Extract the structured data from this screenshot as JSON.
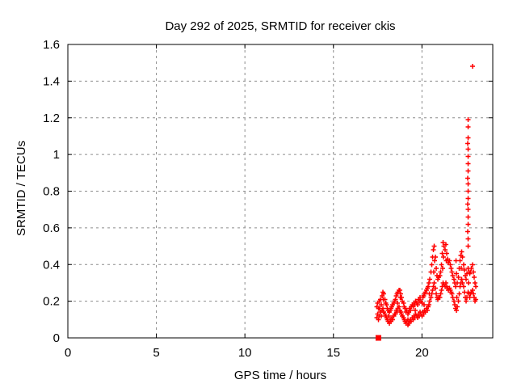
{
  "chart_data": {
    "type": "scatter",
    "title": "Day 292 of 2025, SRMTID for receiver ckis",
    "xlabel": "GPS time / hours",
    "ylabel": "SRMTID / TECUs",
    "xlim": [
      0,
      24
    ],
    "ylim": [
      0,
      1.6
    ],
    "xticks": [
      0,
      5,
      10,
      15,
      20
    ],
    "yticks": [
      0,
      0.2,
      0.4,
      0.6,
      0.8,
      1,
      1.2,
      1.4,
      1.6
    ],
    "grid": true,
    "grid_style": "dashed",
    "legend": "none",
    "colors": {
      "marker": "#ff0000",
      "grid": "#8c8c8c",
      "axis": "#000000",
      "background": "#ffffff",
      "text": "#000000"
    },
    "marker": "plus",
    "zero_marker": {
      "shape": "filled-square",
      "x": 17.54,
      "y": 0
    },
    "outlier": {
      "x": 22.87,
      "y": 1.48
    },
    "series": [
      {
        "name": "SRMTID",
        "points": [
          [
            17.45,
            0.11
          ],
          [
            17.45,
            0.17
          ],
          [
            17.5,
            0.13
          ],
          [
            17.5,
            0.19
          ],
          [
            17.55,
            0.1
          ],
          [
            17.55,
            0.16
          ],
          [
            17.6,
            0.12
          ],
          [
            17.6,
            0.2
          ],
          [
            17.62,
            0.16
          ],
          [
            17.65,
            0.14
          ],
          [
            17.65,
            0.21
          ],
          [
            17.7,
            0.12
          ],
          [
            17.7,
            0.18
          ],
          [
            17.75,
            0.15
          ],
          [
            17.75,
            0.23
          ],
          [
            17.8,
            0.16
          ],
          [
            17.8,
            0.25
          ],
          [
            17.82,
            0.21
          ],
          [
            17.85,
            0.14
          ],
          [
            17.85,
            0.24
          ],
          [
            17.9,
            0.13
          ],
          [
            17.9,
            0.21
          ],
          [
            17.95,
            0.12
          ],
          [
            17.95,
            0.19
          ],
          [
            18.0,
            0.11
          ],
          [
            18.0,
            0.18
          ],
          [
            18.05,
            0.1
          ],
          [
            18.05,
            0.16
          ],
          [
            18.1,
            0.09
          ],
          [
            18.1,
            0.15
          ],
          [
            18.12,
            0.12
          ],
          [
            18.15,
            0.08
          ],
          [
            18.15,
            0.14
          ],
          [
            18.2,
            0.1
          ],
          [
            18.2,
            0.15
          ],
          [
            18.25,
            0.09
          ],
          [
            18.25,
            0.16
          ],
          [
            18.3,
            0.11
          ],
          [
            18.3,
            0.17
          ],
          [
            18.35,
            0.1
          ],
          [
            18.35,
            0.18
          ],
          [
            18.4,
            0.12
          ],
          [
            18.4,
            0.19
          ],
          [
            18.45,
            0.13
          ],
          [
            18.45,
            0.2
          ],
          [
            18.5,
            0.13
          ],
          [
            18.5,
            0.21
          ],
          [
            18.55,
            0.15
          ],
          [
            18.55,
            0.23
          ],
          [
            18.6,
            0.14
          ],
          [
            18.6,
            0.24
          ],
          [
            18.62,
            0.19
          ],
          [
            18.65,
            0.16
          ],
          [
            18.65,
            0.25
          ],
          [
            18.7,
            0.17
          ],
          [
            18.7,
            0.26
          ],
          [
            18.75,
            0.15
          ],
          [
            18.75,
            0.26
          ],
          [
            18.77,
            0.22
          ],
          [
            18.8,
            0.14
          ],
          [
            18.8,
            0.24
          ],
          [
            18.85,
            0.13
          ],
          [
            18.85,
            0.22
          ],
          [
            18.9,
            0.12
          ],
          [
            18.9,
            0.2
          ],
          [
            18.95,
            0.11
          ],
          [
            18.95,
            0.19
          ],
          [
            19.0,
            0.1
          ],
          [
            19.0,
            0.17
          ],
          [
            19.05,
            0.09
          ],
          [
            19.05,
            0.16
          ],
          [
            19.1,
            0.08
          ],
          [
            19.1,
            0.14
          ],
          [
            19.15,
            0.09
          ],
          [
            19.15,
            0.15
          ],
          [
            19.2,
            0.07
          ],
          [
            19.2,
            0.13
          ],
          [
            19.22,
            0.1
          ],
          [
            19.25,
            0.08
          ],
          [
            19.25,
            0.14
          ],
          [
            19.3,
            0.09
          ],
          [
            19.3,
            0.16
          ],
          [
            19.35,
            0.1
          ],
          [
            19.35,
            0.15
          ],
          [
            19.4,
            0.09
          ],
          [
            19.4,
            0.17
          ],
          [
            19.45,
            0.11
          ],
          [
            19.45,
            0.18
          ],
          [
            19.5,
            0.1
          ],
          [
            19.5,
            0.17
          ],
          [
            19.55,
            0.12
          ],
          [
            19.55,
            0.19
          ],
          [
            19.6,
            0.11
          ],
          [
            19.6,
            0.18
          ],
          [
            19.62,
            0.15
          ],
          [
            19.65,
            0.13
          ],
          [
            19.65,
            0.2
          ],
          [
            19.7,
            0.12
          ],
          [
            19.7,
            0.19
          ],
          [
            19.75,
            0.11
          ],
          [
            19.75,
            0.18
          ],
          [
            19.8,
            0.13
          ],
          [
            19.8,
            0.21
          ],
          [
            19.85,
            0.12
          ],
          [
            19.85,
            0.2
          ],
          [
            19.9,
            0.14
          ],
          [
            19.9,
            0.22
          ],
          [
            19.95,
            0.13
          ],
          [
            19.95,
            0.2
          ],
          [
            20.0,
            0.12
          ],
          [
            20.0,
            0.19
          ],
          [
            20.05,
            0.14
          ],
          [
            20.05,
            0.22
          ],
          [
            20.1,
            0.13
          ],
          [
            20.1,
            0.23
          ],
          [
            20.12,
            0.18
          ],
          [
            20.15,
            0.15
          ],
          [
            20.15,
            0.24
          ],
          [
            20.2,
            0.14
          ],
          [
            20.2,
            0.25
          ],
          [
            20.25,
            0.16
          ],
          [
            20.25,
            0.26
          ],
          [
            20.3,
            0.15
          ],
          [
            20.3,
            0.27
          ],
          [
            20.35,
            0.17
          ],
          [
            20.35,
            0.28
          ],
          [
            20.4,
            0.18
          ],
          [
            20.4,
            0.3
          ],
          [
            20.42,
            0.24
          ],
          [
            20.45,
            0.2
          ],
          [
            20.45,
            0.32
          ],
          [
            20.5,
            0.22
          ],
          [
            20.5,
            0.36
          ],
          [
            20.55,
            0.24
          ],
          [
            20.55,
            0.4
          ],
          [
            20.6,
            0.26
          ],
          [
            20.6,
            0.44
          ],
          [
            20.65,
            0.28
          ],
          [
            20.65,
            0.48
          ],
          [
            20.67,
            0.36
          ],
          [
            20.7,
            0.3
          ],
          [
            20.7,
            0.5
          ],
          [
            20.72,
            0.42
          ],
          [
            20.75,
            0.27
          ],
          [
            20.75,
            0.44
          ],
          [
            20.8,
            0.24
          ],
          [
            20.8,
            0.38
          ],
          [
            20.85,
            0.22
          ],
          [
            20.85,
            0.34
          ],
          [
            20.9,
            0.21
          ],
          [
            20.9,
            0.32
          ],
          [
            20.95,
            0.22
          ],
          [
            20.95,
            0.33
          ],
          [
            21.0,
            0.22
          ],
          [
            21.0,
            0.34
          ],
          [
            21.05,
            0.24
          ],
          [
            21.05,
            0.36
          ],
          [
            21.1,
            0.26
          ],
          [
            21.1,
            0.4
          ],
          [
            21.15,
            0.28
          ],
          [
            21.15,
            0.46
          ],
          [
            21.17,
            0.38
          ],
          [
            21.2,
            0.3
          ],
          [
            21.2,
            0.52
          ],
          [
            21.22,
            0.44
          ],
          [
            21.25,
            0.29
          ],
          [
            21.25,
            0.5
          ],
          [
            21.3,
            0.28
          ],
          [
            21.3,
            0.48
          ],
          [
            21.35,
            0.3
          ],
          [
            21.35,
            0.51
          ],
          [
            21.37,
            0.42
          ],
          [
            21.4,
            0.28
          ],
          [
            21.4,
            0.46
          ],
          [
            21.45,
            0.27
          ],
          [
            21.45,
            0.43
          ],
          [
            21.5,
            0.26
          ],
          [
            21.5,
            0.41
          ],
          [
            21.55,
            0.27
          ],
          [
            21.55,
            0.42
          ],
          [
            21.6,
            0.26
          ],
          [
            21.6,
            0.4
          ],
          [
            21.65,
            0.25
          ],
          [
            21.65,
            0.38
          ],
          [
            21.7,
            0.24
          ],
          [
            21.7,
            0.36
          ],
          [
            21.75,
            0.22
          ],
          [
            21.75,
            0.34
          ],
          [
            21.8,
            0.2
          ],
          [
            21.8,
            0.32
          ],
          [
            21.85,
            0.18
          ],
          [
            21.85,
            0.3
          ],
          [
            21.9,
            0.16
          ],
          [
            21.9,
            0.28
          ],
          [
            21.93,
            0.42
          ],
          [
            21.95,
            0.15
          ],
          [
            21.95,
            0.35
          ],
          [
            21.96,
            0.22
          ],
          [
            22.0,
            0.17
          ],
          [
            22.0,
            0.3
          ],
          [
            22.05,
            0.2
          ],
          [
            22.05,
            0.33
          ],
          [
            22.1,
            0.24
          ],
          [
            22.1,
            0.38
          ],
          [
            22.15,
            0.28
          ],
          [
            22.15,
            0.42
          ],
          [
            22.2,
            0.3
          ],
          [
            22.2,
            0.45
          ],
          [
            22.22,
            0.38
          ],
          [
            22.25,
            0.32
          ],
          [
            22.25,
            0.47
          ],
          [
            22.3,
            0.3
          ],
          [
            22.3,
            0.44
          ],
          [
            22.35,
            0.28
          ],
          [
            22.35,
            0.4
          ],
          [
            22.4,
            0.25
          ],
          [
            22.4,
            0.37
          ],
          [
            22.45,
            0.22
          ],
          [
            22.45,
            0.34
          ],
          [
            22.5,
            0.2
          ],
          [
            22.5,
            0.32
          ],
          [
            22.55,
            0.22
          ],
          [
            22.55,
            0.35
          ],
          [
            22.6,
            0.25
          ],
          [
            22.6,
            0.38
          ],
          [
            22.62,
            0.3
          ],
          [
            22.65,
            0.24
          ],
          [
            22.65,
            0.36
          ],
          [
            22.7,
            0.22
          ],
          [
            22.7,
            0.35
          ],
          [
            22.75,
            0.24
          ],
          [
            22.75,
            0.36
          ],
          [
            22.8,
            0.25
          ],
          [
            22.8,
            0.38
          ],
          [
            22.85,
            0.26
          ],
          [
            22.85,
            0.4
          ],
          [
            22.9,
            0.24
          ],
          [
            22.9,
            0.36
          ],
          [
            22.95,
            0.22
          ],
          [
            22.95,
            0.33
          ],
          [
            23.0,
            0.2
          ],
          [
            23.0,
            0.3
          ],
          [
            23.05,
            0.21
          ],
          [
            23.05,
            0.28
          ],
          [
            22.6,
            0.5
          ],
          [
            22.61,
            0.54
          ],
          [
            22.59,
            0.58
          ],
          [
            22.6,
            0.62
          ],
          [
            22.61,
            0.66
          ],
          [
            22.6,
            0.7
          ],
          [
            22.59,
            0.73
          ],
          [
            22.6,
            0.76
          ],
          [
            22.61,
            0.8
          ],
          [
            22.6,
            0.84
          ],
          [
            22.59,
            0.87
          ],
          [
            22.6,
            0.91
          ],
          [
            22.61,
            0.95
          ],
          [
            22.6,
            0.99
          ],
          [
            22.6,
            1.03
          ],
          [
            22.59,
            1.06
          ],
          [
            22.6,
            1.09
          ],
          [
            22.6,
            1.15
          ],
          [
            22.6,
            1.19
          ],
          [
            22.87,
            1.48
          ]
        ]
      }
    ]
  }
}
